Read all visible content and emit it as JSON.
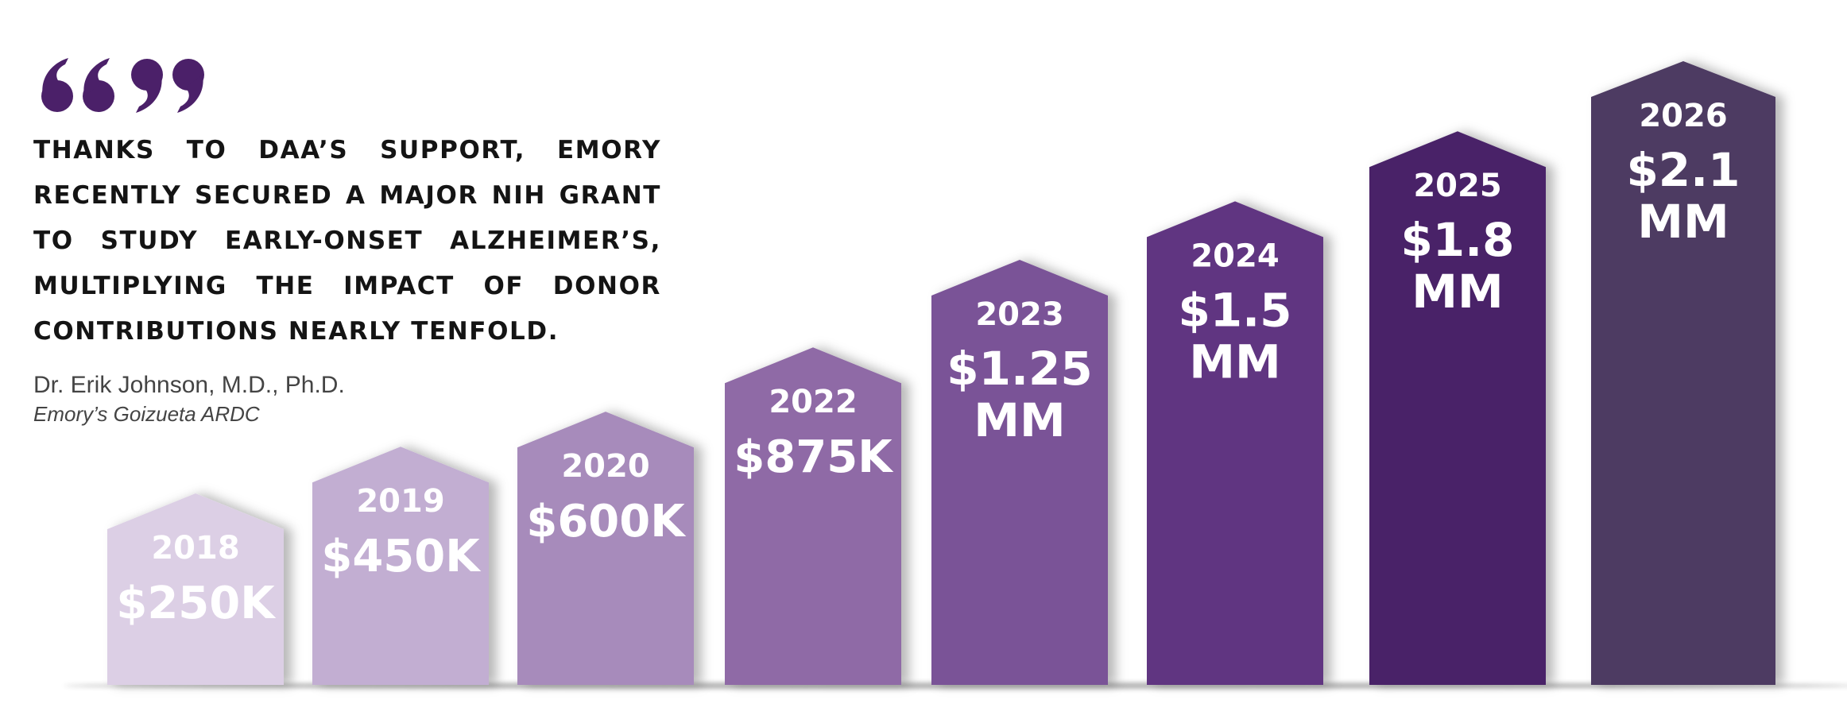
{
  "quote": {
    "text": "THANKS TO DAA’S SUPPORT, EMORY RECENTLY SECURED A MAJOR NIH GRANT TO STUDY EARLY-ONSET ALZHEIMER’S, MULTIPLYING THE IMPACT OF DONOR CONTRIBUTIONS NEARLY TENFOLD.",
    "author": "Dr. Erik Johnson, M.D., Ph.D.",
    "affiliation": "Emory’s Goizueta ARDC",
    "icon": "quotation-marks-icon"
  },
  "colors": {
    "quote_mark": "#4b2069",
    "quote_text": "#141414",
    "author_text": "#444444"
  },
  "chart_data": {
    "type": "bar",
    "categories": [
      "2018",
      "2019",
      "2020",
      "2022",
      "2023",
      "2024",
      "2025",
      "2026"
    ],
    "values": [
      250000,
      450000,
      600000,
      875000,
      1250000,
      1500000,
      1800000,
      2100000
    ],
    "value_labels": [
      [
        "$250K"
      ],
      [
        "$450K"
      ],
      [
        "$600K"
      ],
      [
        "$875K"
      ],
      [
        "$1.25",
        "MM"
      ],
      [
        "$1.5",
        "MM"
      ],
      [
        "$1.8",
        "MM"
      ],
      [
        "$2.1",
        "MM"
      ]
    ],
    "colors": [
      "#dccfe5",
      "#c2aed2",
      "#a78bbb",
      "#8f6aa6",
      "#7a5397",
      "#613481",
      "#4a2468",
      "#4d3a62"
    ],
    "title": "",
    "xlabel": "",
    "ylabel": "",
    "grid": false,
    "legend": "none"
  }
}
